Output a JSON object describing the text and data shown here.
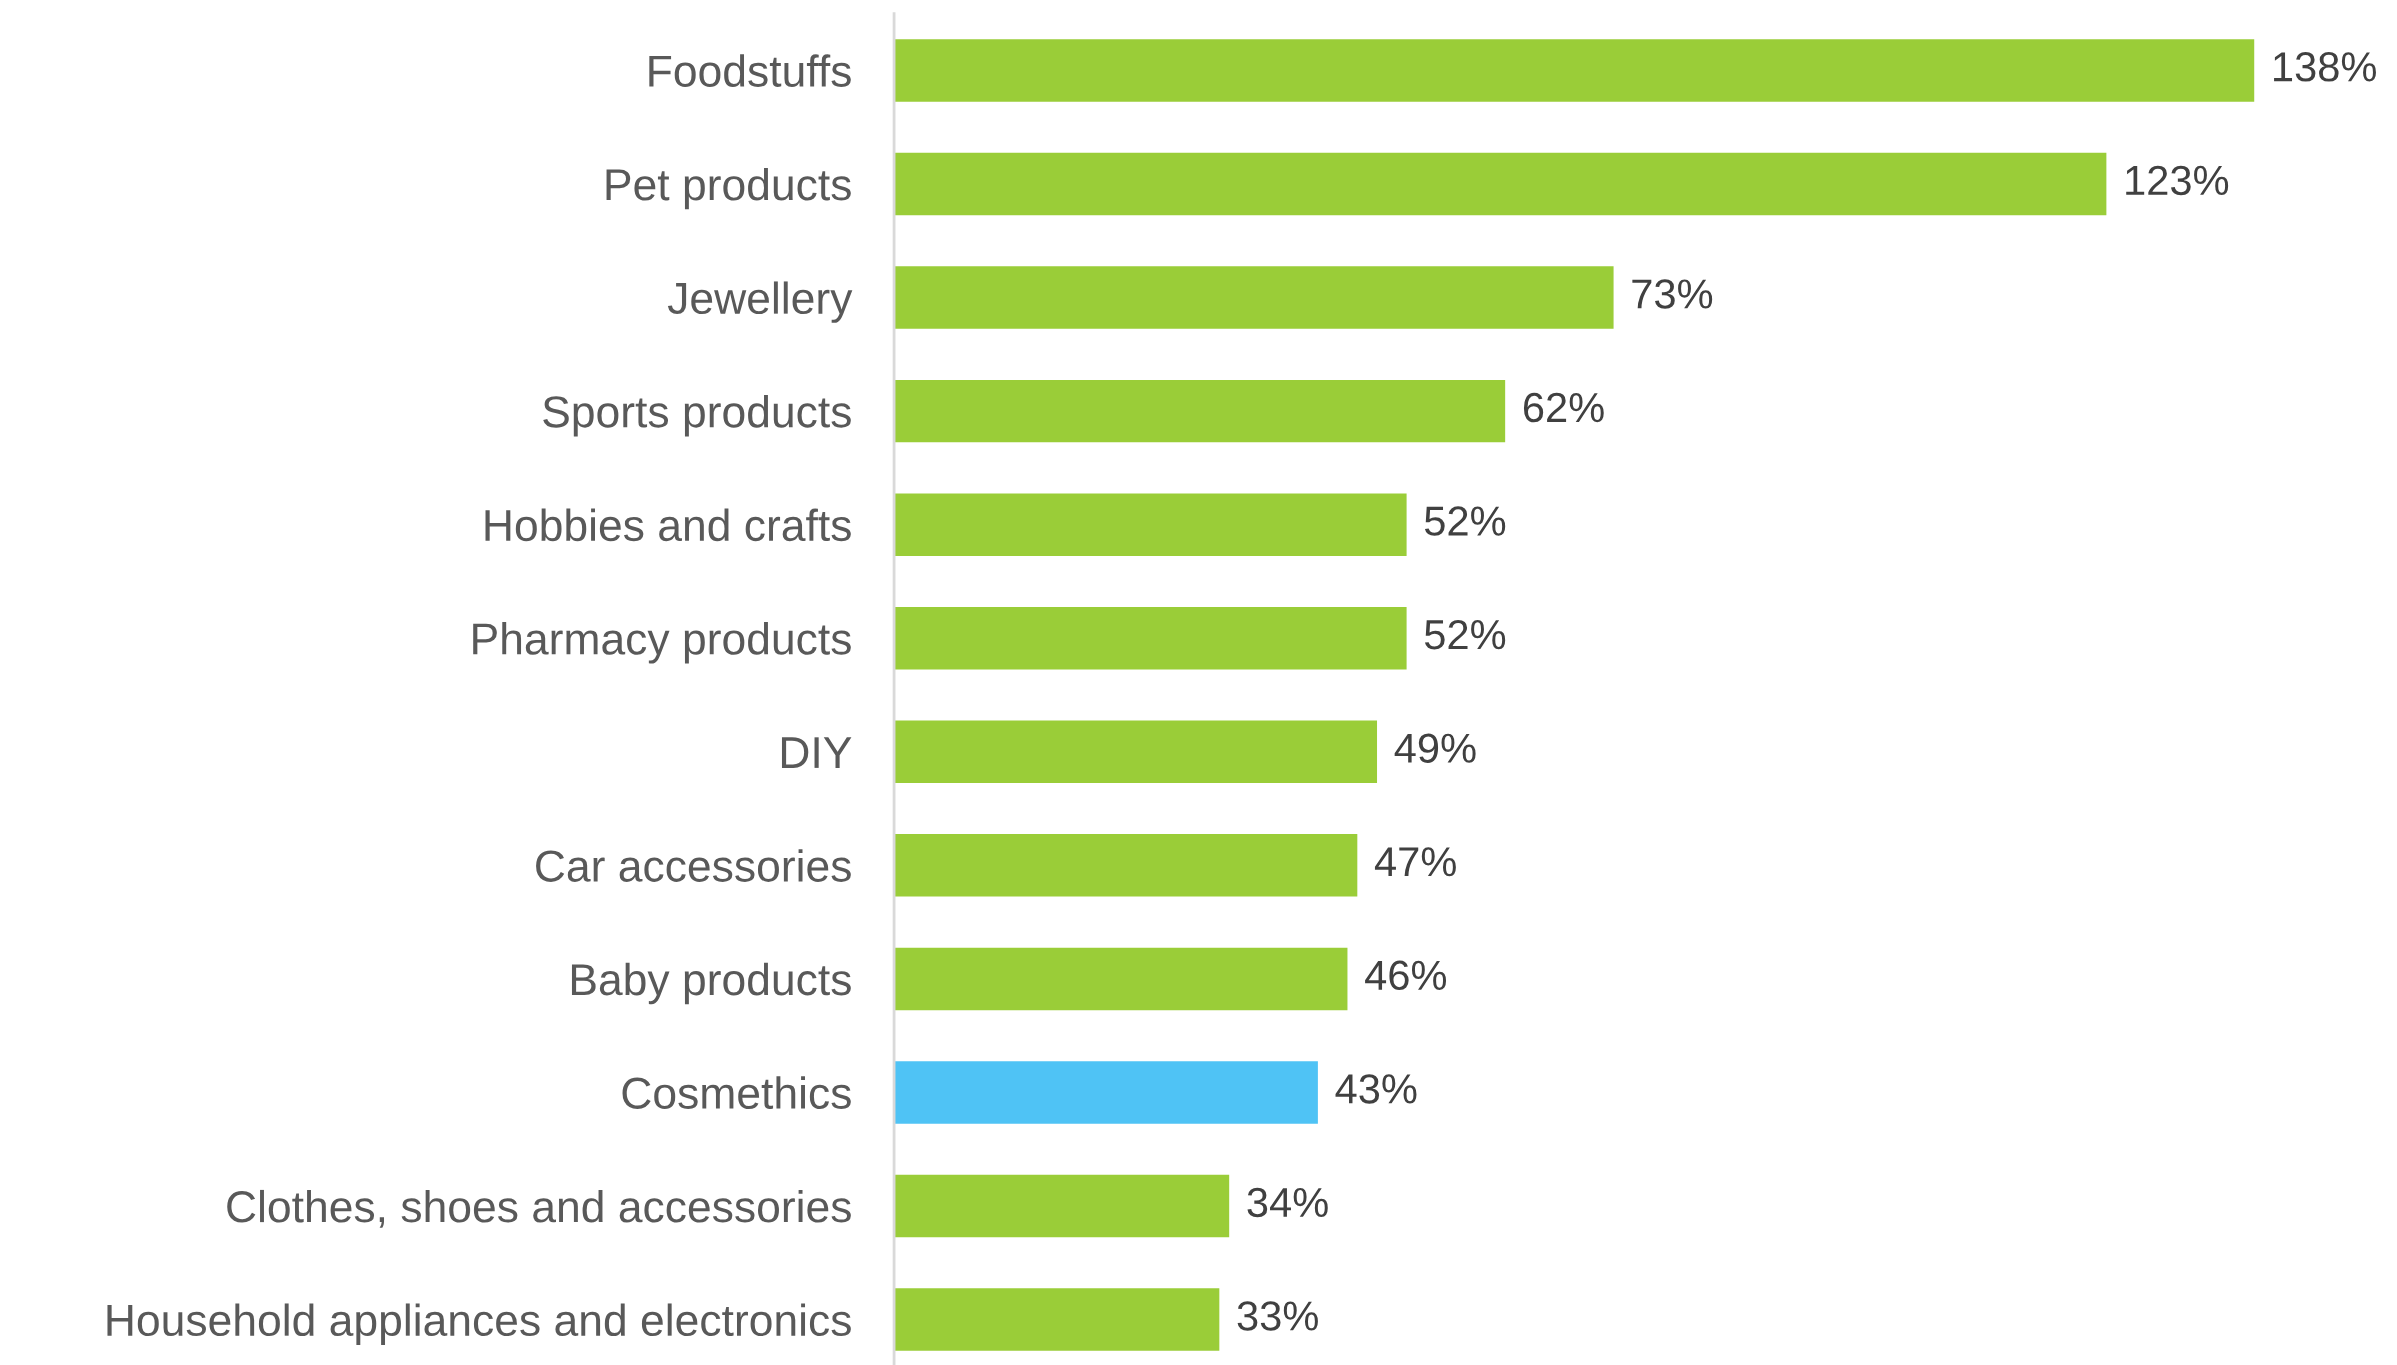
{
  "chart_data": {
    "type": "bar",
    "orientation": "horizontal",
    "categories": [
      "Foodstuffs",
      "Pet products",
      "Jewellery",
      "Sports products",
      "Hobbies and crafts",
      "Pharmacy products",
      "DIY",
      "Car accessories",
      "Baby products",
      "Cosmethics",
      "Clothes, shoes and accessories",
      "Household appliances and electronics"
    ],
    "values": [
      138,
      123,
      73,
      62,
      52,
      52,
      49,
      47,
      46,
      43,
      34,
      33
    ],
    "value_labels": [
      "138%",
      "123%",
      "73%",
      "62%",
      "52%",
      "52%",
      "49%",
      "47%",
      "46%",
      "43%",
      "34%",
      "33%"
    ],
    "colors": [
      "#9acd38",
      "#9acd38",
      "#9acd38",
      "#9acd38",
      "#9acd38",
      "#9acd38",
      "#9acd38",
      "#9acd38",
      "#9acd38",
      "#4fc3f5",
      "#9acd38",
      "#9acd38"
    ],
    "tick_labels": "y",
    "grid": false,
    "legend": false
  }
}
